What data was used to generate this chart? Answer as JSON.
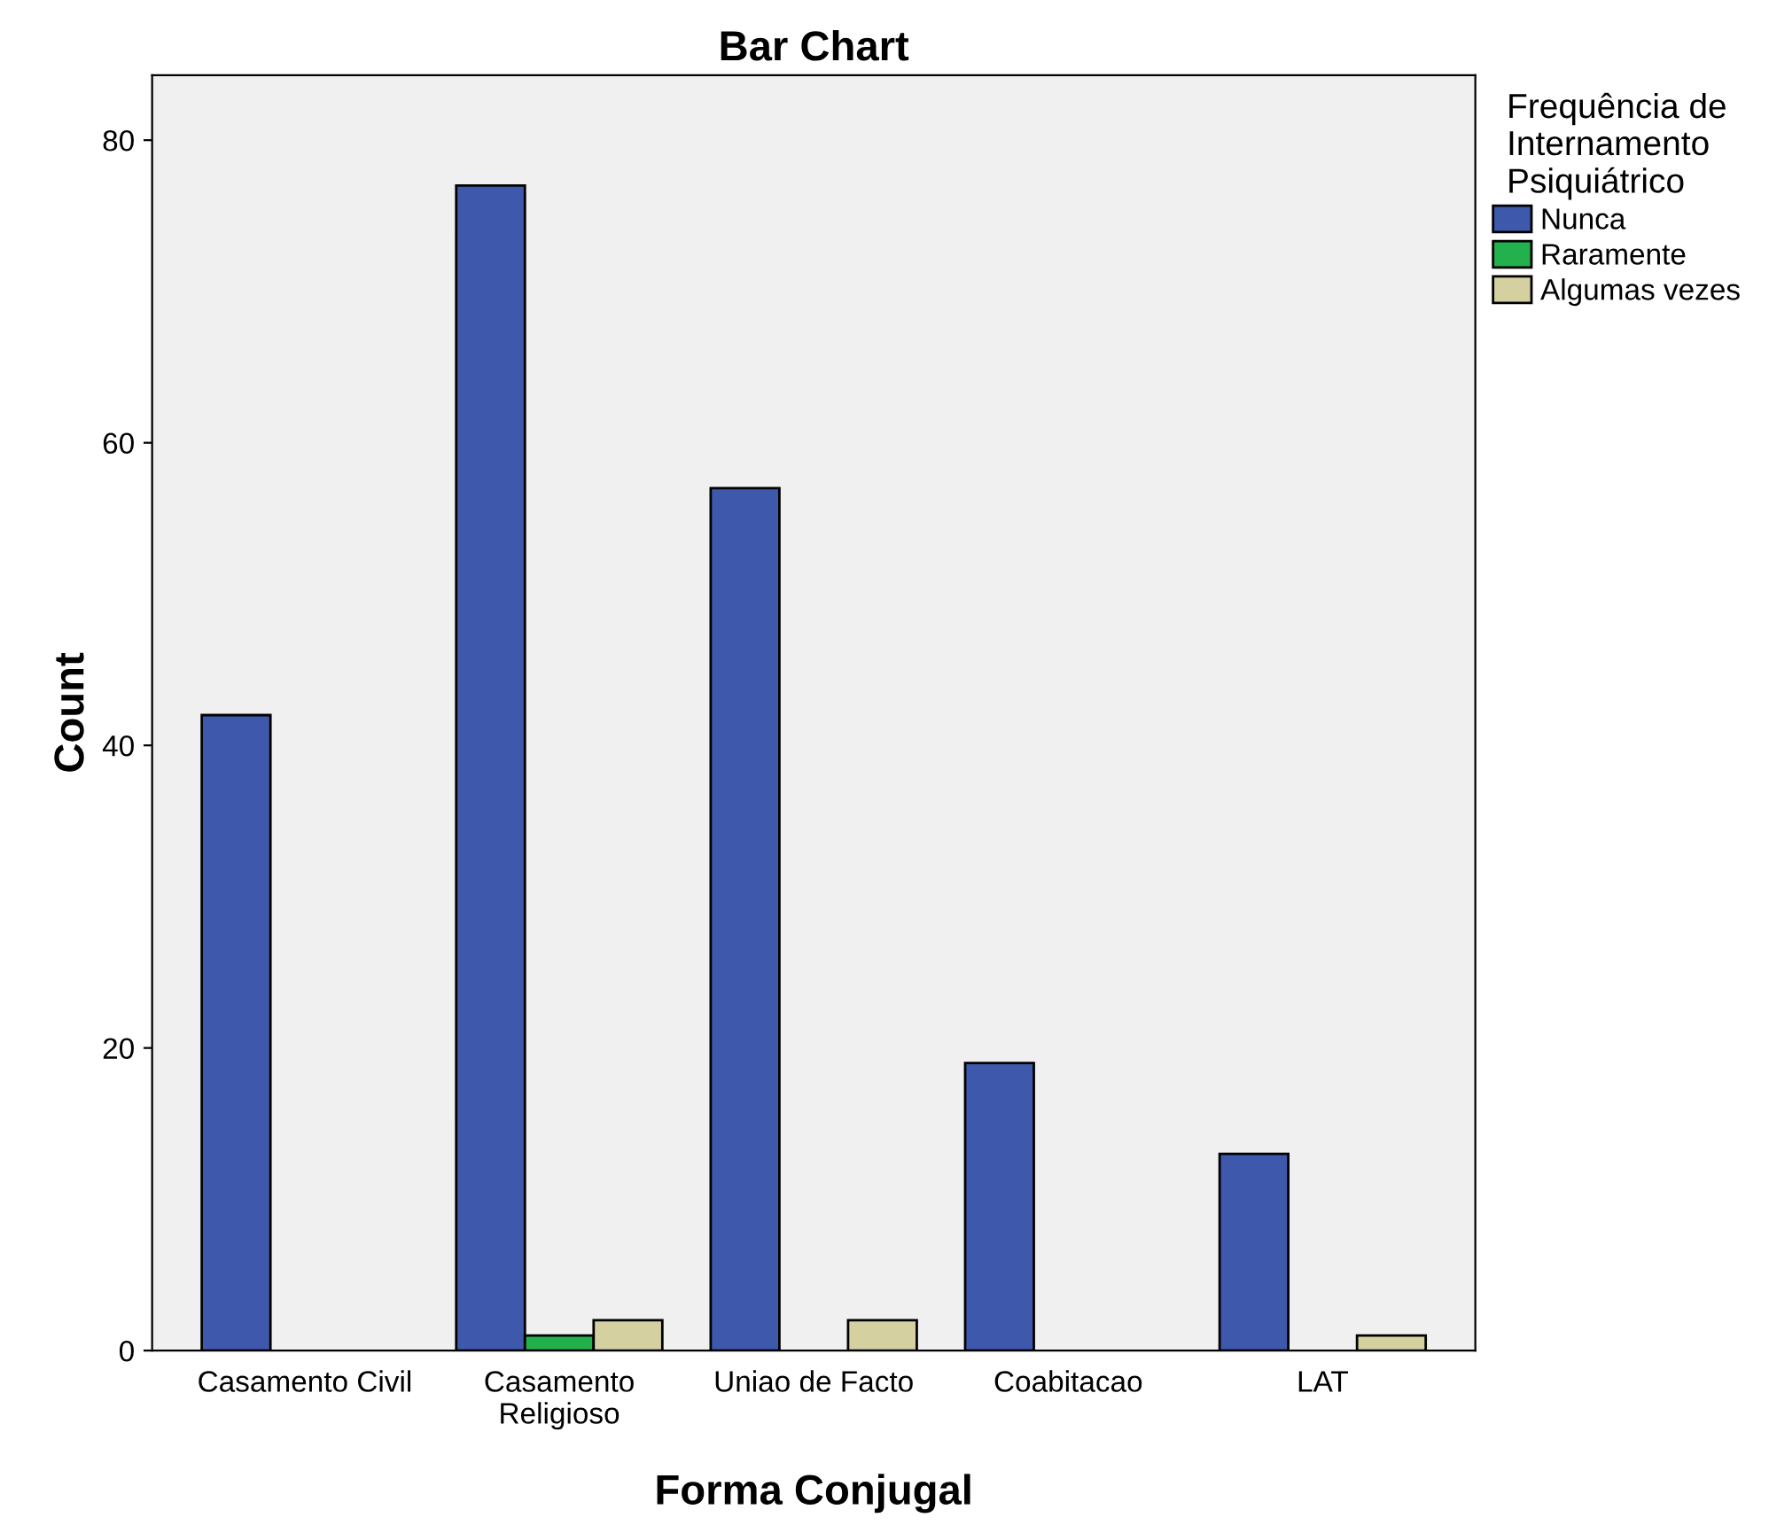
{
  "chart_data": {
    "type": "bar",
    "title": "Bar Chart",
    "xlabel": "Forma Conjugal",
    "ylabel": "Count",
    "legend_title": "Frequência de\nInternamento\nPsiquiátrico",
    "categories": [
      "Casamento Civil",
      "Casamento\nReligioso",
      "Uniao de Facto",
      "Coabitacao",
      "LAT"
    ],
    "series": [
      {
        "name": "Nunca",
        "color": "#3e58ac",
        "values": [
          42,
          77,
          57,
          19,
          13
        ]
      },
      {
        "name": "Raramente",
        "color": "#22b14c",
        "values": [
          null,
          1,
          null,
          null,
          null
        ]
      },
      {
        "name": "Algumas vezes",
        "color": "#d5d0a0",
        "values": [
          null,
          2,
          2,
          null,
          1
        ]
      }
    ],
    "ylim": [
      0,
      84.3
    ],
    "yticks": [
      0,
      20,
      40,
      60,
      80
    ],
    "grid": false,
    "legend": "right"
  }
}
